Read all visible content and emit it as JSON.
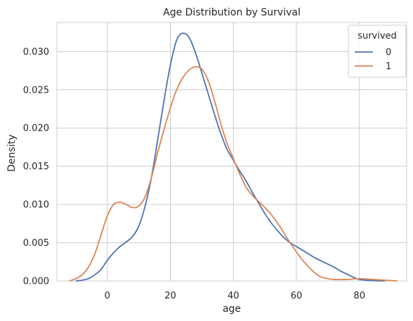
{
  "chart_data": {
    "type": "line",
    "title": "Age Distribution by Survival",
    "xlabel": "age",
    "ylabel": "Density",
    "xlim": [
      -16,
      95
    ],
    "ylim": [
      0,
      0.0338
    ],
    "grid": true,
    "legend": {
      "title": "survived",
      "placement": "top-right"
    },
    "xticks": [
      {
        "value": 0,
        "label": "0"
      },
      {
        "value": 20,
        "label": "20"
      },
      {
        "value": 40,
        "label": "40"
      },
      {
        "value": 60,
        "label": "60"
      },
      {
        "value": 80,
        "label": "80"
      }
    ],
    "yticks": [
      {
        "value": 0.0,
        "label": "0.000"
      },
      {
        "value": 0.005,
        "label": "0.005"
      },
      {
        "value": 0.01,
        "label": "0.010"
      },
      {
        "value": 0.015,
        "label": "0.015"
      },
      {
        "value": 0.02,
        "label": "0.020"
      },
      {
        "value": 0.025,
        "label": "0.025"
      },
      {
        "value": 0.03,
        "label": "0.030"
      }
    ],
    "series": [
      {
        "name": "0",
        "color": "#4c72b0",
        "points": [
          [
            -10,
            0.0
          ],
          [
            -8,
            0.0001
          ],
          [
            -6,
            0.0003
          ],
          [
            -4,
            0.0008
          ],
          [
            -2,
            0.0015
          ],
          [
            0,
            0.0027
          ],
          [
            2,
            0.0037
          ],
          [
            4,
            0.0045
          ],
          [
            6,
            0.0051
          ],
          [
            8,
            0.0058
          ],
          [
            10,
            0.0072
          ],
          [
            12,
            0.0098
          ],
          [
            14,
            0.0135
          ],
          [
            16,
            0.0185
          ],
          [
            18,
            0.0236
          ],
          [
            20,
            0.0282
          ],
          [
            22,
            0.0315
          ],
          [
            24,
            0.0324
          ],
          [
            26,
            0.0318
          ],
          [
            28,
            0.0298
          ],
          [
            30,
            0.0272
          ],
          [
            32,
            0.0245
          ],
          [
            34,
            0.0218
          ],
          [
            36,
            0.0193
          ],
          [
            38,
            0.0172
          ],
          [
            40,
            0.0158
          ],
          [
            42,
            0.0144
          ],
          [
            44,
            0.0131
          ],
          [
            46,
            0.0116
          ],
          [
            48,
            0.0102
          ],
          [
            50,
            0.0088
          ],
          [
            52,
            0.0076
          ],
          [
            54,
            0.0066
          ],
          [
            56,
            0.0057
          ],
          [
            58,
            0.005
          ],
          [
            60,
            0.0045
          ],
          [
            62,
            0.004
          ],
          [
            64,
            0.0035
          ],
          [
            66,
            0.003
          ],
          [
            68,
            0.0026
          ],
          [
            70,
            0.0022
          ],
          [
            72,
            0.0018
          ],
          [
            74,
            0.0013
          ],
          [
            76,
            0.0009
          ],
          [
            78,
            0.0005
          ],
          [
            80,
            0.0002
          ],
          [
            84,
            5e-05
          ],
          [
            88,
            0.0
          ]
        ]
      },
      {
        "name": "1",
        "color": "#dd8452",
        "points": [
          [
            -12,
            0.0
          ],
          [
            -10,
            0.0003
          ],
          [
            -8,
            0.0008
          ],
          [
            -6,
            0.0018
          ],
          [
            -4,
            0.0035
          ],
          [
            -2,
            0.006
          ],
          [
            0,
            0.0085
          ],
          [
            2,
            0.01
          ],
          [
            4,
            0.0103
          ],
          [
            6,
            0.01
          ],
          [
            8,
            0.0096
          ],
          [
            10,
            0.0098
          ],
          [
            12,
            0.011
          ],
          [
            14,
            0.0135
          ],
          [
            16,
            0.0168
          ],
          [
            18,
            0.0198
          ],
          [
            20,
            0.0226
          ],
          [
            22,
            0.025
          ],
          [
            24,
            0.0266
          ],
          [
            26,
            0.0276
          ],
          [
            28,
            0.028
          ],
          [
            30,
            0.0277
          ],
          [
            32,
            0.0262
          ],
          [
            34,
            0.0236
          ],
          [
            36,
            0.0206
          ],
          [
            38,
            0.018
          ],
          [
            40,
            0.016
          ],
          [
            42,
            0.014
          ],
          [
            44,
            0.0123
          ],
          [
            46,
            0.0112
          ],
          [
            48,
            0.0104
          ],
          [
            50,
            0.0096
          ],
          [
            52,
            0.0087
          ],
          [
            54,
            0.0076
          ],
          [
            56,
            0.0063
          ],
          [
            58,
            0.005
          ],
          [
            60,
            0.0038
          ],
          [
            62,
            0.0027
          ],
          [
            64,
            0.0018
          ],
          [
            66,
            0.001
          ],
          [
            68,
            0.0005
          ],
          [
            70,
            0.0003
          ],
          [
            72,
            0.0002
          ],
          [
            76,
            0.0002
          ],
          [
            80,
            0.0003
          ],
          [
            84,
            0.0002
          ],
          [
            88,
            0.0001
          ],
          [
            92,
            0.0
          ]
        ]
      }
    ]
  }
}
